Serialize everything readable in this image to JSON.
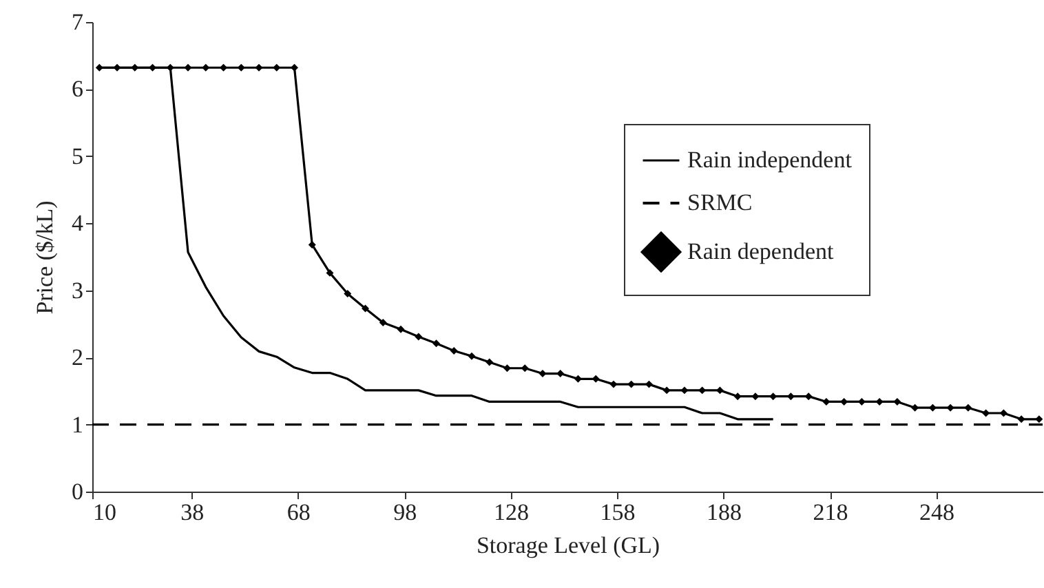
{
  "chart_data": {
    "type": "line",
    "xlabel": "Storage Level (GL)",
    "ylabel": "Price ($/kL)",
    "xlim": [
      10,
      278
    ],
    "xticks": [
      10,
      38,
      68,
      98,
      128,
      158,
      188,
      218,
      248
    ],
    "ylim": [
      0,
      7
    ],
    "yticks": [
      0,
      1,
      2,
      3,
      4,
      5,
      6,
      7
    ],
    "grid": false,
    "legend": "top right",
    "series": [
      {
        "name": "Rain independent",
        "color": "#000000",
        "line_style": "solid",
        "marker": "none",
        "x": [
          12,
          17,
          22,
          27,
          32,
          37,
          42,
          47,
          52,
          57,
          62,
          67,
          72,
          77,
          82,
          87,
          92,
          97,
          102,
          107,
          112,
          117,
          122,
          127,
          132,
          137,
          142,
          147,
          152,
          157,
          162,
          167,
          172,
          177,
          182,
          187,
          192,
          197,
          202
        ],
        "values": [
          6.32,
          6.32,
          6.32,
          6.32,
          6.32,
          3.57,
          3.05,
          2.62,
          2.3,
          2.09,
          2.01,
          1.85,
          1.77,
          1.77,
          1.68,
          1.51,
          1.51,
          1.51,
          1.51,
          1.43,
          1.43,
          1.43,
          1.34,
          1.34,
          1.34,
          1.34,
          1.34,
          1.26,
          1.26,
          1.26,
          1.26,
          1.26,
          1.26,
          1.26,
          1.17,
          1.17,
          1.08,
          1.08,
          1.08
        ]
      },
      {
        "name": "SRMC",
        "color": "#000000",
        "line_style": "dashed",
        "marker": "none",
        "x": [
          10,
          278
        ],
        "values": [
          1,
          1
        ]
      },
      {
        "name": "Rain dependent",
        "color": "#000000",
        "line_style": "solid",
        "marker": "diamond",
        "x": [
          12,
          17,
          22,
          27,
          32,
          37,
          42,
          47,
          52,
          57,
          62,
          67,
          72,
          77,
          82,
          87,
          92,
          97,
          102,
          107,
          112,
          117,
          122,
          127,
          132,
          137,
          142,
          147,
          152,
          157,
          162,
          167,
          172,
          177,
          182,
          187,
          192,
          197,
          202,
          207,
          212,
          217,
          222,
          227,
          232,
          237,
          242,
          247,
          252,
          257,
          262,
          267,
          272,
          277
        ],
        "values": [
          6.32,
          6.32,
          6.32,
          6.32,
          6.32,
          6.32,
          6.32,
          6.32,
          6.32,
          6.32,
          6.32,
          6.32,
          3.68,
          3.26,
          2.95,
          2.73,
          2.52,
          2.42,
          2.31,
          2.21,
          2.1,
          2.02,
          1.93,
          1.84,
          1.84,
          1.76,
          1.76,
          1.68,
          1.68,
          1.6,
          1.6,
          1.6,
          1.51,
          1.51,
          1.51,
          1.51,
          1.42,
          1.42,
          1.42,
          1.42,
          1.42,
          1.34,
          1.34,
          1.34,
          1.34,
          1.34,
          1.25,
          1.25,
          1.25,
          1.25,
          1.17,
          1.17,
          1.08,
          1.08
        ]
      }
    ]
  }
}
